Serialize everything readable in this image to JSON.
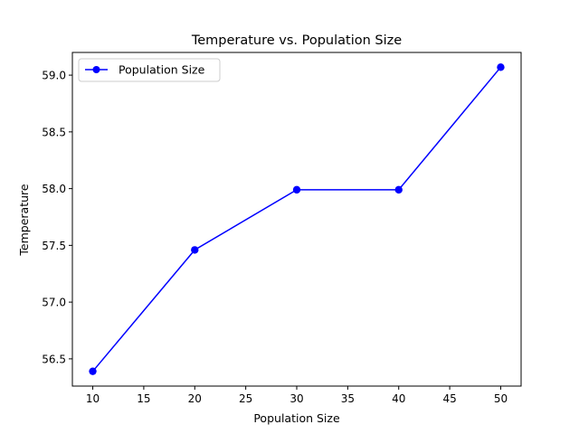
{
  "chart_data": {
    "type": "line",
    "title": "Temperature vs. Population Size",
    "xlabel": "Population Size",
    "ylabel": "Temperature",
    "x": [
      10,
      20,
      30,
      40,
      50
    ],
    "series": [
      {
        "name": "Population Size",
        "values": [
          56.39,
          57.46,
          57.99,
          57.99,
          59.07
        ],
        "color": "#0000ff",
        "marker": "circle"
      }
    ],
    "xlim": [
      8,
      52
    ],
    "ylim": [
      56.26,
      59.2
    ],
    "xticks": [
      10,
      15,
      20,
      25,
      30,
      35,
      40,
      45,
      50
    ],
    "xtick_labels": [
      "10",
      "15",
      "20",
      "25",
      "30",
      "35",
      "40",
      "45",
      "50"
    ],
    "yticks": [
      56.5,
      57.0,
      57.5,
      58.0,
      58.5,
      59.0
    ],
    "ytick_labels": [
      "56.5",
      "57.0",
      "57.5",
      "58.0",
      "58.5",
      "59.0"
    ],
    "legend_position": "top-left",
    "grid": false
  }
}
